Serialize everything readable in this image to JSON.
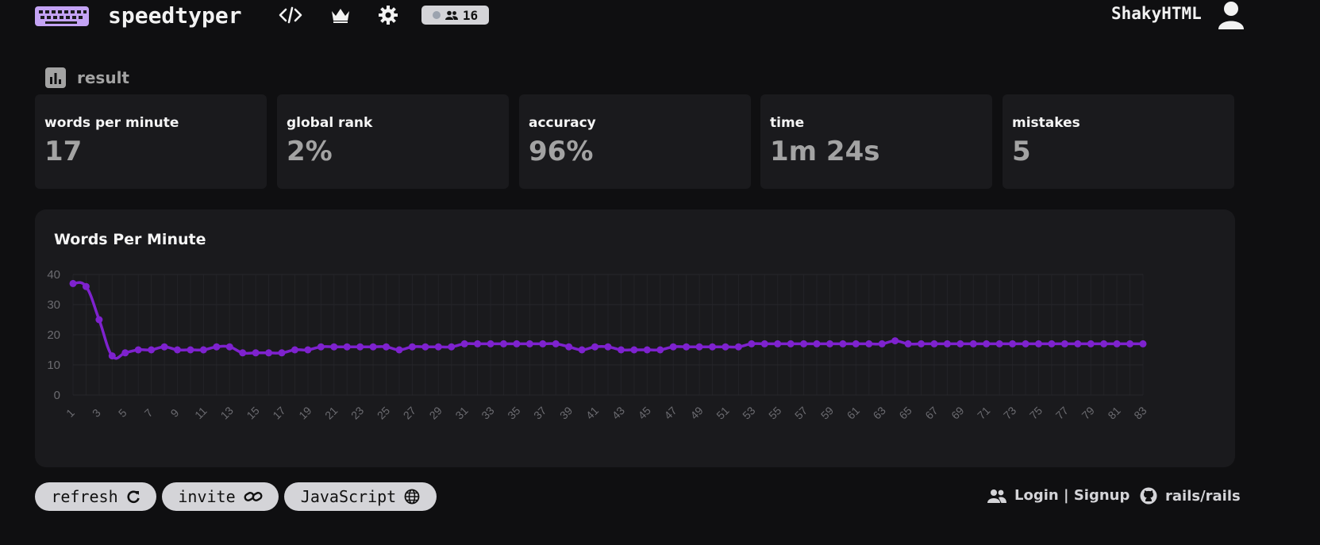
{
  "header": {
    "brand": "speedtyper",
    "nav_icons": [
      "code-icon",
      "crown-icon",
      "gear-icon"
    ],
    "online_count": "16",
    "username": "ShakyHTML"
  },
  "result": {
    "title": "result",
    "stats": [
      {
        "label": "words per minute",
        "value": "17"
      },
      {
        "label": "global rank",
        "value": "2%"
      },
      {
        "label": "accuracy",
        "value": "96%"
      },
      {
        "label": "time",
        "value": "1m 24s"
      },
      {
        "label": "mistakes",
        "value": "5"
      }
    ]
  },
  "chart_data": {
    "type": "line",
    "title": "Words Per Minute",
    "xlabel": "",
    "ylabel": "",
    "ylim": [
      0,
      40
    ],
    "yticks": [
      0,
      10,
      20,
      30,
      40
    ],
    "x": [
      1,
      2,
      3,
      4,
      5,
      6,
      7,
      8,
      9,
      10,
      11,
      12,
      13,
      14,
      15,
      16,
      17,
      18,
      19,
      20,
      21,
      22,
      23,
      24,
      25,
      26,
      27,
      28,
      29,
      30,
      31,
      32,
      33,
      34,
      35,
      36,
      37,
      38,
      39,
      40,
      41,
      42,
      43,
      44,
      45,
      46,
      47,
      48,
      49,
      50,
      51,
      52,
      53,
      54,
      55,
      56,
      57,
      58,
      59,
      60,
      61,
      62,
      63,
      64,
      65,
      66,
      67,
      68,
      69,
      70,
      71,
      72,
      73,
      74,
      75,
      76,
      77,
      78,
      79,
      80,
      81,
      82,
      83
    ],
    "xticks": [
      1,
      3,
      5,
      7,
      9,
      11,
      13,
      15,
      17,
      19,
      21,
      23,
      25,
      27,
      29,
      31,
      33,
      35,
      37,
      39,
      41,
      43,
      45,
      47,
      49,
      51,
      53,
      55,
      57,
      59,
      61,
      63,
      65,
      67,
      69,
      71,
      73,
      75,
      77,
      79,
      81,
      83
    ],
    "values": [
      37,
      36,
      25,
      13,
      14,
      15,
      15,
      16,
      15,
      15,
      15,
      16,
      16,
      14,
      14,
      14,
      14,
      15,
      15,
      16,
      16,
      16,
      16,
      16,
      16,
      15,
      16,
      16,
      16,
      16,
      17,
      17,
      17,
      17,
      17,
      17,
      17,
      17,
      16,
      15,
      16,
      16,
      15,
      15,
      15,
      15,
      16,
      16,
      16,
      16,
      16,
      16,
      17,
      17,
      17,
      17,
      17,
      17,
      17,
      17,
      17,
      17,
      17,
      18,
      17,
      17,
      17,
      17,
      17,
      17,
      17,
      17,
      17,
      17,
      17,
      17,
      17,
      17,
      17,
      17,
      17,
      17,
      17
    ],
    "grid": true,
    "line_color": "#7e22ce"
  },
  "controls": {
    "refresh_label": "refresh",
    "invite_label": "invite",
    "language_label": "JavaScript"
  },
  "footer": {
    "login_label": "Login | Signup",
    "repo_label": "rails/rails"
  }
}
